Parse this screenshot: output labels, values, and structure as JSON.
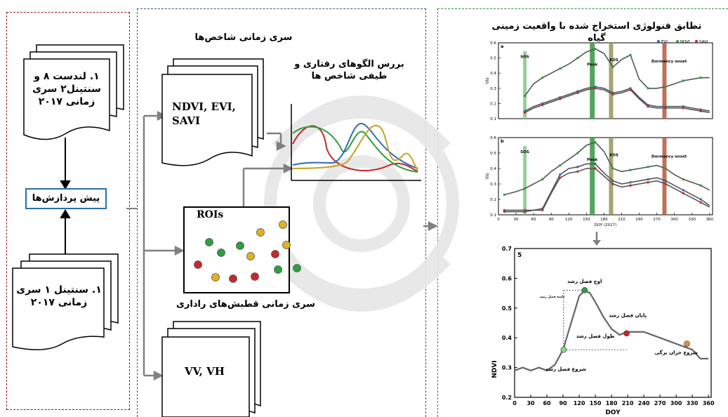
{
  "left_panel": {
    "doc_top_text": "۱. لندست ۸ و سنتینل۲ سری زمانی ۲۰۱۷",
    "preprocess_label": "پیش پردازش‌ها",
    "doc_bottom_text": "۱. سنتینل ۱ سری زمانی ۲۰۱۷"
  },
  "middle_panel": {
    "indices_title": "سری زمانی شاخص‌ها",
    "indices_doc_text": "NDVI, EVI, SAVI",
    "patterns_title": "بررس الگوهای رفتاری و طیفی شاخص ها",
    "rois_label": "ROIs",
    "rois_caption": "سری زمانی قطبش‌های راداری",
    "radar_doc_text": "VV, VH"
  },
  "right_panel": {
    "title": "تطابق فنولوژی استخراج شده با واقعیت زمینی گیاه",
    "chart_a": {
      "panel_letter": "a",
      "legend": [
        "EVI",
        "NDVI",
        "SAVI"
      ],
      "ylabel": "VIs",
      "yticks": [
        "0.1",
        "0.2",
        "0.3",
        "0.4",
        "0.5",
        "0.6"
      ],
      "annotations": [
        "SOS",
        "Peak",
        "EOS",
        "Dormancy onset"
      ]
    },
    "chart_b": {
      "panel_letter": "b",
      "ylabel": "VIs",
      "yticks": [
        "0.1",
        "0.2",
        "0.3",
        "0.4",
        "0.5",
        "0.6"
      ],
      "xticks": [
        "0",
        "30",
        "60",
        "90",
        "120",
        "150",
        "180",
        "210",
        "240",
        "270",
        "300",
        "330",
        "360"
      ],
      "xlabel": "DOY (2017)",
      "annotations": [
        "SOS",
        "Peak",
        "EOS",
        "Dormancy onset"
      ]
    },
    "chart_c": {
      "panel_letter": "5",
      "ylabel": "NDVI",
      "xlabel": "DOY",
      "yticks": [
        "0.2",
        "0.3",
        "0.4",
        "0.5",
        "0.6",
        "0.7"
      ],
      "xticks": [
        "0",
        "30",
        "60",
        "90",
        "120",
        "150",
        "180",
        "210",
        "240",
        "270",
        "300",
        "330",
        "360"
      ],
      "annotations": {
        "peak": "اوج فصل رشد",
        "half": "دامنه فصل رشد",
        "eos": "پایان فصل رشد",
        "length": "طول فصل رشد",
        "sos": "شروع فصل رشد",
        "dormancy": "شروع خزان برگی"
      }
    }
  },
  "colors": {
    "evi": "#2f6bb3",
    "ndvi": "#2e9e3e",
    "savi": "#c62828",
    "arrow": "#808080"
  },
  "chart_data": [
    {
      "type": "line",
      "panel": "a",
      "x": [
        10,
        30,
        45,
        60,
        75,
        90,
        105,
        120,
        135,
        150,
        165,
        180,
        195,
        210,
        225,
        240,
        255,
        270,
        285,
        300,
        315,
        330,
        345,
        360
      ],
      "series": [
        {
          "name": "NDVI",
          "values": [
            null,
            null,
            0.25,
            0.33,
            0.37,
            0.4,
            0.43,
            0.46,
            0.5,
            0.54,
            0.56,
            0.53,
            0.44,
            0.49,
            0.52,
            0.36,
            0.3,
            0.3,
            0.31,
            0.33,
            0.35,
            0.36,
            0.37,
            0.37
          ]
        },
        {
          "name": "EVI",
          "values": [
            null,
            null,
            0.15,
            0.18,
            0.2,
            0.22,
            0.24,
            0.26,
            0.28,
            0.3,
            0.31,
            0.3,
            0.27,
            0.28,
            0.3,
            0.24,
            0.19,
            0.18,
            0.18,
            0.18,
            0.18,
            0.17,
            0.16,
            0.15
          ]
        },
        {
          "name": "SAVI",
          "values": [
            null,
            null,
            0.14,
            0.17,
            0.19,
            0.21,
            0.23,
            0.25,
            0.27,
            0.29,
            0.3,
            0.29,
            0.26,
            0.27,
            0.29,
            0.23,
            0.18,
            0.17,
            0.17,
            0.17,
            0.17,
            0.16,
            0.15,
            0.14
          ]
        }
      ],
      "ylim": [
        0.1,
        0.6
      ],
      "xlim": [
        0,
        365
      ]
    },
    {
      "type": "line",
      "panel": "b",
      "x": [
        10,
        30,
        45,
        60,
        75,
        90,
        105,
        120,
        135,
        150,
        165,
        180,
        195,
        210,
        225,
        240,
        255,
        270,
        285,
        300,
        315,
        330,
        345,
        360
      ],
      "series": [
        {
          "name": "NDVI",
          "values": [
            0.23,
            0.25,
            0.27,
            0.3,
            0.33,
            0.38,
            0.42,
            0.46,
            0.5,
            0.55,
            0.57,
            0.51,
            0.4,
            0.38,
            0.39,
            0.4,
            0.41,
            0.42,
            0.4,
            0.36,
            0.33,
            0.31,
            0.29,
            0.26
          ]
        },
        {
          "name": "EVI",
          "values": [
            0.13,
            0.13,
            0.13,
            0.13,
            0.14,
            0.25,
            0.36,
            0.4,
            0.41,
            0.43,
            0.43,
            0.37,
            0.32,
            0.3,
            0.31,
            0.32,
            0.33,
            0.34,
            0.32,
            0.29,
            0.26,
            0.23,
            0.2,
            0.16
          ]
        },
        {
          "name": "SAVI",
          "values": [
            0.12,
            0.12,
            0.12,
            0.13,
            0.13,
            0.24,
            0.34,
            0.37,
            0.38,
            0.4,
            0.4,
            0.35,
            0.3,
            0.28,
            0.29,
            0.3,
            0.31,
            0.32,
            0.3,
            0.27,
            0.24,
            0.21,
            0.18,
            0.15
          ]
        }
      ],
      "ylim": [
        0.1,
        0.6
      ],
      "xlim": [
        0,
        365
      ]
    },
    {
      "type": "line",
      "panel": "5",
      "x": [
        0,
        15,
        30,
        45,
        60,
        75,
        90,
        105,
        120,
        130,
        140,
        150,
        165,
        180,
        195,
        210,
        225,
        240,
        255,
        270,
        285,
        300,
        315,
        330,
        345,
        360
      ],
      "series": [
        {
          "name": "NDVI",
          "values": [
            0.29,
            0.3,
            0.29,
            0.3,
            0.29,
            0.31,
            0.36,
            0.45,
            0.54,
            0.56,
            0.55,
            0.52,
            0.47,
            0.43,
            0.41,
            0.42,
            0.42,
            0.42,
            0.41,
            0.4,
            0.39,
            0.38,
            0.37,
            0.36,
            0.33,
            0.33
          ]
        }
      ],
      "points": [
        {
          "x": 91,
          "y": 0.36,
          "color": "#7ee07e"
        },
        {
          "x": 130,
          "y": 0.56,
          "color": "#2e9e3e"
        },
        {
          "x": 208,
          "y": 0.415,
          "color": "#c62828"
        },
        {
          "x": 320,
          "y": 0.38,
          "color": "#f08a3c"
        }
      ],
      "ylim": [
        0.2,
        0.7
      ],
      "xlim": [
        0,
        365
      ]
    }
  ]
}
